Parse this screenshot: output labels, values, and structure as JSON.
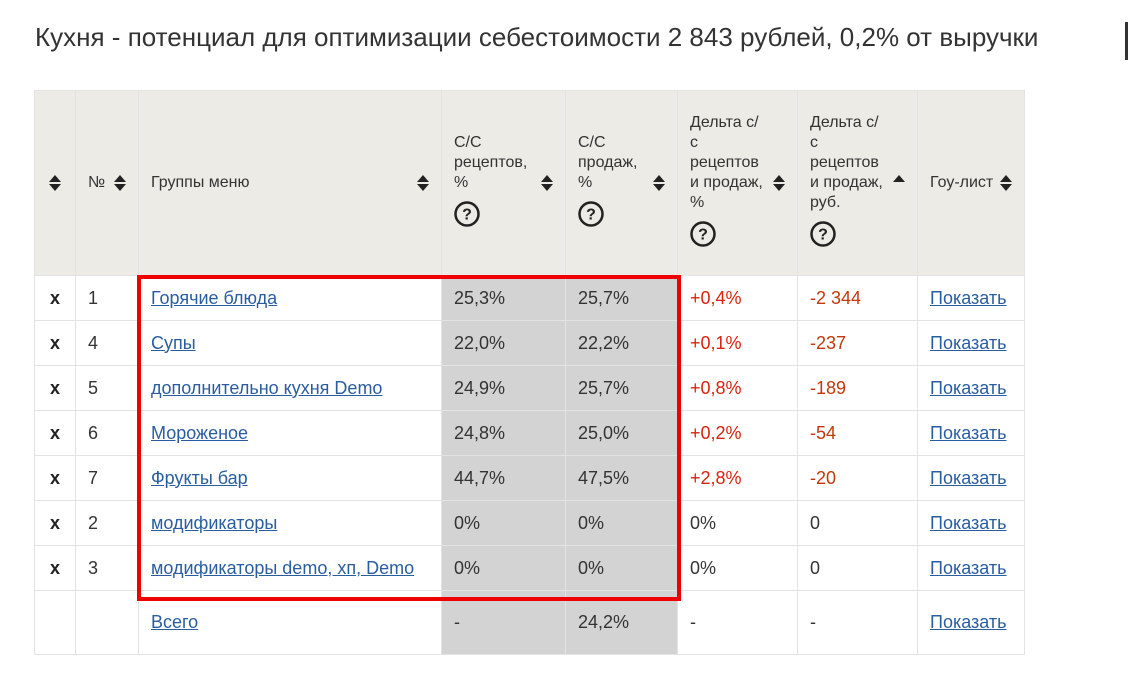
{
  "title": "Кухня - потенциал для оптимизации себестоимости 2 843 рублей, 0,2% от выручки",
  "colors": {
    "header_bg": "#edebe5",
    "gray_cell": "#d3d3d3",
    "link": "#2a5d9f",
    "delta": "#d9230f",
    "highlight": "#ee0000"
  },
  "table": {
    "columns": [
      {
        "label": ""
      },
      {
        "label": "№"
      },
      {
        "label": "Группы меню"
      },
      {
        "label": "С/С рецептов, %"
      },
      {
        "label": "С/С продаж, %"
      },
      {
        "label": "Дельта с/с рецептов и продаж, %"
      },
      {
        "label": "Дельта с/с рецептов и продаж, руб."
      },
      {
        "label": "Гоу-лист"
      }
    ],
    "rows": [
      {
        "del": "x",
        "num": "1",
        "group": "Горячие блюда",
        "cc_recipe": "25,3%",
        "cc_sales": "25,7%",
        "delta_pct": "+0,4%",
        "delta_rub": "-2 344",
        "golist": "Показать"
      },
      {
        "del": "x",
        "num": "4",
        "group": "Супы",
        "cc_recipe": "22,0%",
        "cc_sales": "22,2%",
        "delta_pct": "+0,1%",
        "delta_rub": "-237",
        "golist": "Показать"
      },
      {
        "del": "x",
        "num": "5",
        "group": "дополнительно кухня Demo",
        "cc_recipe": "24,9%",
        "cc_sales": "25,7%",
        "delta_pct": "+0,8%",
        "delta_rub": "-189",
        "golist": "Показать"
      },
      {
        "del": "x",
        "num": "6",
        "group": "Мороженое",
        "cc_recipe": "24,8%",
        "cc_sales": "25,0%",
        "delta_pct": "+0,2%",
        "delta_rub": "-54",
        "golist": "Показать"
      },
      {
        "del": "x",
        "num": "7",
        "group": "Фрукты бар",
        "cc_recipe": "44,7%",
        "cc_sales": "47,5%",
        "delta_pct": "+2,8%",
        "delta_rub": "-20",
        "golist": "Показать"
      },
      {
        "del": "x",
        "num": "2",
        "group": "модификаторы",
        "cc_recipe": "0%",
        "cc_sales": "0%",
        "delta_pct": "0%",
        "delta_rub": "0",
        "golist": "Показать"
      },
      {
        "del": "x",
        "num": "3",
        "group": "модификаторы demo, хп, Demo",
        "cc_recipe": "0%",
        "cc_sales": "0%",
        "delta_pct": "0%",
        "delta_rub": "0",
        "golist": "Показать"
      }
    ],
    "total": {
      "group": "Всего",
      "cc_recipe": "-",
      "cc_sales": "24,2%",
      "delta_pct": "-",
      "delta_rub": "-",
      "golist": "Показать"
    }
  }
}
